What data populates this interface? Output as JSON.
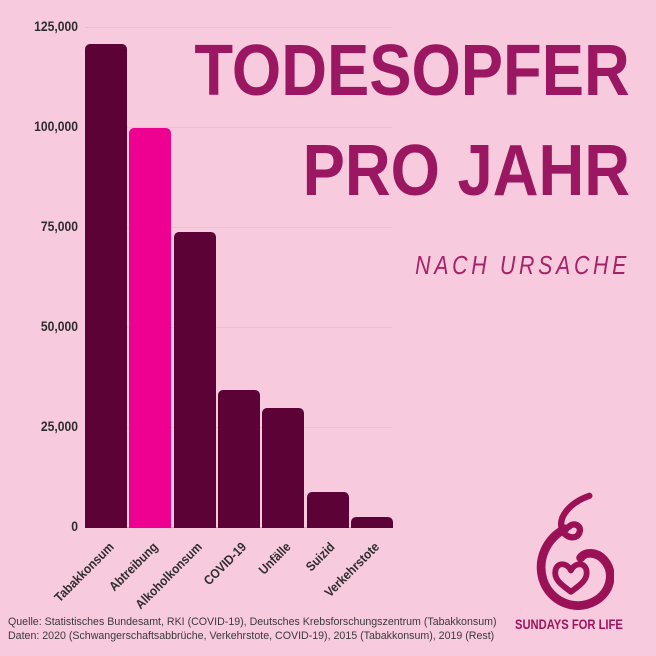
{
  "title": {
    "line1": "TODESOPFER",
    "line2": "PRO JAHR",
    "subtitle": "NACH URSACHE"
  },
  "chart_data": {
    "type": "bar",
    "title": "TODESOPFER PRO JAHR",
    "subtitle": "NACH URSACHE",
    "categories": [
      "Tabakkonsum",
      "Abtreibung",
      "Alkoholkonsum",
      "COVID-19",
      "Unfälle",
      "Suizid",
      "Verkehrstote"
    ],
    "values": [
      121000,
      100000,
      74000,
      34500,
      30000,
      9100,
      2800
    ],
    "highlighted_category": "Abtreibung",
    "highlight_index": 1,
    "xlabel": "",
    "ylabel": "",
    "ylim": [
      0,
      125000
    ],
    "ytick_values": [
      0,
      25000,
      50000,
      75000,
      100000,
      125000
    ],
    "ytick_labels": [
      "0",
      "25,000",
      "50,000",
      "75,000",
      "100,000",
      "125,000"
    ],
    "grid": true,
    "legend": false,
    "bar_color": "#5c0237",
    "highlight_color": "#ee0090"
  },
  "footer": {
    "source_line": "Quelle: Statistisches Bundesamt, RKI (COVID-19), Deutsches Krebsforschungszentrum (Tabakkonsum)",
    "data_line": "Daten: 2020 (Schwangerschaftsabbrüche, Verkehrstote, COVID-19), 2015 (Tabakkonsum), 2019 (Rest)"
  },
  "brand": {
    "name": "SUNDAYS FOR LIFE",
    "logo_icon": "pregnant-woman-heart-icon"
  },
  "colors": {
    "background": "#f8cade",
    "bar": "#5c0237",
    "highlight": "#ee0090",
    "title": "#9c1761",
    "subtitle": "#a62268",
    "axis_text": "#2e2e2e",
    "gridline": "#e3c2d3",
    "baseline": "#c9aebd",
    "footer_text": "#3a3a3a",
    "brand": "#a1125c"
  }
}
